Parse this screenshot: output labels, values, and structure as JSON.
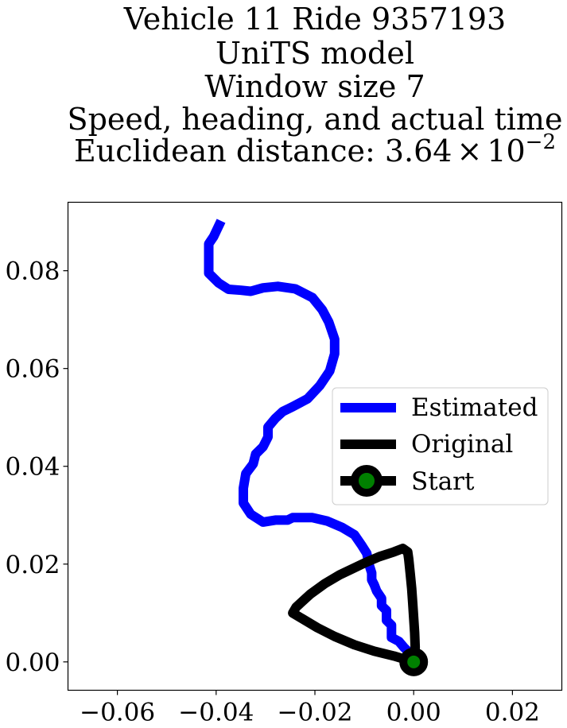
{
  "chart_data": {
    "type": "line",
    "title_lines": [
      "Vehicle 11 Ride 9357193",
      "UniTS model",
      "Window size 7",
      "Speed, heading, and actual time"
    ],
    "title_metric": {
      "prefix": "Euclidean distance: ",
      "mantissa": "3.64",
      "times": "×",
      "base": "10",
      "exponent": "−2"
    },
    "xlabel": "",
    "ylabel": "",
    "xlim": [
      -0.07,
      0.03
    ],
    "ylim": [
      -0.0058,
      0.094
    ],
    "xticks": [
      -0.06,
      -0.04,
      -0.02,
      0.0,
      0.02
    ],
    "xtick_labels": [
      "−0.06",
      "−0.04",
      "−0.02",
      "0.00",
      "0.02"
    ],
    "yticks": [
      0.0,
      0.02,
      0.04,
      0.06,
      0.08
    ],
    "ytick_labels": [
      "0.00",
      "0.02",
      "0.04",
      "0.06",
      "0.08"
    ],
    "grid": false,
    "legend_position": "center-right",
    "series": [
      {
        "name": "Estimated",
        "color": "#0000ff",
        "points": [
          [
            0.0,
            0.0
          ],
          [
            -0.0005,
            0.0015
          ],
          [
            -0.002,
            0.003
          ],
          [
            -0.003,
            0.0042
          ],
          [
            -0.0045,
            0.005
          ],
          [
            -0.0045,
            0.0075
          ],
          [
            -0.0055,
            0.0085
          ],
          [
            -0.0055,
            0.0105
          ],
          [
            -0.0065,
            0.0115
          ],
          [
            -0.0065,
            0.013
          ],
          [
            -0.0075,
            0.0145
          ],
          [
            -0.008,
            0.0158
          ],
          [
            -0.0085,
            0.0168
          ],
          [
            -0.0085,
            0.0182
          ],
          [
            -0.009,
            0.0198
          ],
          [
            -0.0095,
            0.0222
          ],
          [
            -0.0105,
            0.0238
          ],
          [
            -0.012,
            0.026
          ],
          [
            -0.0145,
            0.0275
          ],
          [
            -0.0175,
            0.0288
          ],
          [
            -0.0205,
            0.0295
          ],
          [
            -0.0245,
            0.0295
          ],
          [
            -0.0255,
            0.029
          ],
          [
            -0.028,
            0.029
          ],
          [
            -0.0305,
            0.0286
          ],
          [
            -0.033,
            0.0302
          ],
          [
            -0.0345,
            0.0325
          ],
          [
            -0.0345,
            0.0355
          ],
          [
            -0.034,
            0.0385
          ],
          [
            -0.0325,
            0.0405
          ],
          [
            -0.032,
            0.0425
          ],
          [
            -0.0305,
            0.044
          ],
          [
            -0.0295,
            0.046
          ],
          [
            -0.0295,
            0.048
          ],
          [
            -0.028,
            0.0498
          ],
          [
            -0.0265,
            0.0512
          ],
          [
            -0.0245,
            0.0522
          ],
          [
            -0.0215,
            0.0538
          ],
          [
            -0.019,
            0.0565
          ],
          [
            -0.017,
            0.0595
          ],
          [
            -0.016,
            0.063
          ],
          [
            -0.016,
            0.066
          ],
          [
            -0.0172,
            0.0695
          ],
          [
            -0.0185,
            0.072
          ],
          [
            -0.0205,
            0.0745
          ],
          [
            -0.024,
            0.0763
          ],
          [
            -0.0275,
            0.0768
          ],
          [
            -0.0305,
            0.0765
          ],
          [
            -0.033,
            0.0758
          ],
          [
            -0.035,
            0.076
          ],
          [
            -0.0375,
            0.0762
          ],
          [
            -0.0395,
            0.0775
          ],
          [
            -0.0415,
            0.0795
          ],
          [
            -0.0415,
            0.0825
          ],
          [
            -0.0415,
            0.0855
          ],
          [
            -0.0405,
            0.087
          ],
          [
            -0.039,
            0.0902
          ]
        ]
      },
      {
        "name": "Original",
        "color": "#000000",
        "points": [
          [
            0.0,
            0.0
          ],
          [
            -0.004,
            0.0012
          ],
          [
            -0.008,
            0.0022
          ],
          [
            -0.012,
            0.0035
          ],
          [
            -0.016,
            0.0052
          ],
          [
            -0.0195,
            0.007
          ],
          [
            -0.0225,
            0.0088
          ],
          [
            -0.0245,
            0.01
          ],
          [
            -0.0238,
            0.0112
          ],
          [
            -0.021,
            0.0138
          ],
          [
            -0.018,
            0.016
          ],
          [
            -0.015,
            0.0178
          ],
          [
            -0.0125,
            0.019
          ],
          [
            -0.01,
            0.0202
          ],
          [
            -0.007,
            0.0215
          ],
          [
            -0.004,
            0.0225
          ],
          [
            -0.0022,
            0.0232
          ],
          [
            -0.0012,
            0.0225
          ],
          [
            -0.001,
            0.021
          ],
          [
            -0.0007,
            0.018
          ],
          [
            -0.0004,
            0.015
          ],
          [
            -0.0002,
            0.012
          ],
          [
            0.0,
            0.009
          ],
          [
            0.0002,
            0.006
          ],
          [
            0.0003,
            0.003
          ],
          [
            0.0002,
            0.0008
          ],
          [
            0.0,
            0.0
          ]
        ]
      }
    ],
    "start_marker": {
      "name": "Start",
      "point": [
        0.0,
        0.0
      ],
      "edge_color": "#000000",
      "face_color": "#008000"
    }
  }
}
